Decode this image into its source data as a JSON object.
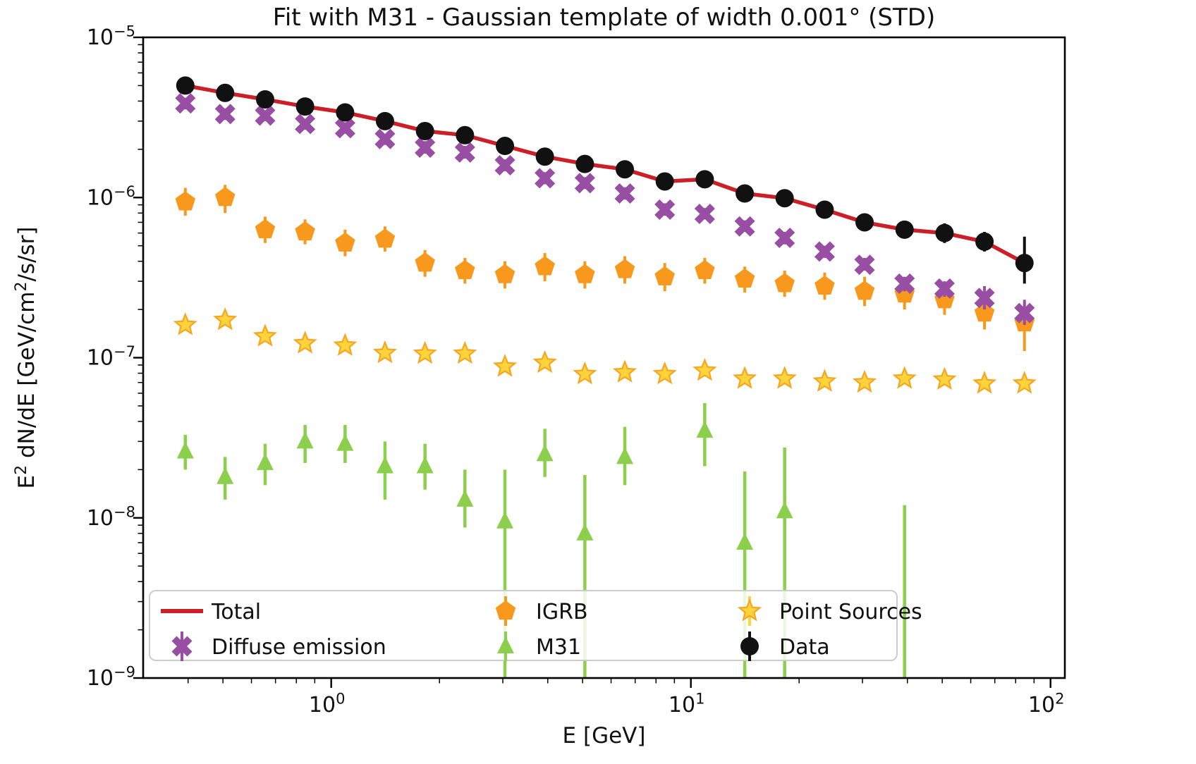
{
  "chart_data": {
    "type": "line",
    "title": "Fit with M31 - Gaussian template of width 0.001° (STD)",
    "xlabel": "E [GeV]",
    "ylabel": "E^2 dN/dE [GeV/cm^2/s/sr]",
    "xscale": "log",
    "yscale": "log",
    "xlim": [
      0.3,
      109.6
    ],
    "ylim": [
      1e-09,
      1e-05
    ],
    "grid": false,
    "frame_color": "#000000",
    "background": "#ffffff",
    "x_ticks": [
      {
        "value": 1,
        "exponent": "0",
        "label": "10^0"
      },
      {
        "value": 10,
        "exponent": "1",
        "label": "10^1"
      },
      {
        "value": 100,
        "exponent": "2",
        "label": "10^2"
      }
    ],
    "y_ticks": [
      {
        "value": 1e-05,
        "exponent": "-5",
        "label": "10^-5"
      },
      {
        "value": 1e-06,
        "exponent": "-6",
        "label": "10^-6"
      },
      {
        "value": 1e-07,
        "exponent": "-7",
        "label": "10^-7"
      },
      {
        "value": 1e-08,
        "exponent": "-8",
        "label": "10^-8"
      },
      {
        "value": 1e-09,
        "exponent": "-9",
        "label": "10^-9"
      }
    ],
    "energies_gev": [
      0.393,
      0.507,
      0.655,
      0.846,
      1.093,
      1.411,
      1.823,
      2.354,
      3.041,
      3.927,
      5.073,
      6.552,
      8.462,
      10.93,
      14.12,
      18.23,
      23.55,
      30.41,
      39.28,
      50.74,
      65.53,
      84.64
    ],
    "series": [
      {
        "name": "Total",
        "type": "line",
        "marker": null,
        "color": "#cb2027",
        "values": [
          5e-06,
          4.5e-06,
          4.1e-06,
          3.7e-06,
          3.4e-06,
          3e-06,
          2.6e-06,
          2.45e-06,
          2.1e-06,
          1.8e-06,
          1.62e-06,
          1.5e-06,
          1.26e-06,
          1.3e-06,
          1.06e-06,
          9.9e-07,
          8.4e-07,
          7e-07,
          6.3e-07,
          6e-07,
          5.3e-07,
          3.9e-07
        ]
      },
      {
        "name": "IGRB",
        "type": "errorbar",
        "marker": "pentagon",
        "color": "#f8991d",
        "values": [
          9.4e-07,
          1e-06,
          6.3e-07,
          6.1e-07,
          5.2e-07,
          5.5e-07,
          3.9e-07,
          3.5e-07,
          3.3e-07,
          3.7e-07,
          3.3e-07,
          3.55e-07,
          3.2e-07,
          3.5e-07,
          3.1e-07,
          2.9e-07,
          2.8e-07,
          2.6e-07,
          2.5e-07,
          2.3e-07,
          1.9e-07,
          1.65e-07
        ],
        "err_hi": [
          1.15e-06,
          1.2e-06,
          7.6e-07,
          7.3e-07,
          6.3e-07,
          6.6e-07,
          4.7e-07,
          4.2e-07,
          4e-07,
          4.5e-07,
          4e-07,
          4.3e-07,
          3.9e-07,
          4.2e-07,
          3.7e-07,
          3.5e-07,
          3.4e-07,
          3.2e-07,
          3e-07,
          2.9e-07,
          2.4e-07,
          2.2e-07
        ],
        "err_lo": [
          7.7e-07,
          8e-07,
          5.2e-07,
          5.1e-07,
          4.3e-07,
          4.6e-07,
          3.2e-07,
          2.9e-07,
          2.7e-07,
          3e-07,
          2.7e-07,
          2.9e-07,
          2.6e-07,
          2.9e-07,
          2.55e-07,
          2.4e-07,
          2.3e-07,
          2.1e-07,
          2e-07,
          1.85e-07,
          1.5e-07,
          1.1e-07
        ]
      },
      {
        "name": "Point Sources",
        "type": "errorbar",
        "marker": "star",
        "color": "#ffd43b",
        "edge_color": "#f5a623",
        "values": [
          1.6e-07,
          1.72e-07,
          1.36e-07,
          1.23e-07,
          1.19e-07,
          1.07e-07,
          1.06e-07,
          1.06e-07,
          8.8e-08,
          9.3e-08,
          7.9e-08,
          8.1e-08,
          7.9e-08,
          8.3e-08,
          7.4e-08,
          7.4e-08,
          7.1e-08,
          7e-08,
          7.4e-08,
          7.3e-08,
          6.9e-08,
          6.9e-08
        ],
        "err_hi": [
          1.7e-07,
          1.82e-07,
          1.44e-07,
          1.3e-07,
          1.26e-07,
          1.13e-07,
          1.12e-07,
          1.12e-07,
          9.3e-08,
          9.9e-08,
          8.4e-08,
          8.6e-08,
          8.4e-08,
          8.8e-08,
          7.8e-08,
          7.8e-08,
          7.5e-08,
          7.4e-08,
          7.8e-08,
          7.7e-08,
          7.3e-08,
          7.3e-08
        ],
        "err_lo": [
          1.51e-07,
          1.62e-07,
          1.28e-07,
          1.16e-07,
          1.12e-07,
          1.01e-07,
          1e-07,
          1e-07,
          8.3e-08,
          8.8e-08,
          7.5e-08,
          7.6e-08,
          7.5e-08,
          7.8e-08,
          7e-08,
          7e-08,
          6.7e-08,
          6.6e-08,
          7e-08,
          6.9e-08,
          6.5e-08,
          6.5e-08
        ]
      },
      {
        "name": "M31",
        "type": "errorbar",
        "marker": "triangle",
        "color": "#8bcf4c",
        "values": [
          2.6e-08,
          1.8e-08,
          2.2e-08,
          3e-08,
          2.9e-08,
          2.1e-08,
          2.1e-08,
          1.3e-08,
          9.5e-09,
          2.5e-08,
          8e-09,
          2.4e-08,
          null,
          3.5e-08,
          7e-09,
          1.1e-08,
          null,
          null,
          null,
          null,
          null,
          null
        ],
        "err_hi": [
          3.3e-08,
          2.4e-08,
          2.9e-08,
          3.8e-08,
          3.8e-08,
          3e-08,
          2.9e-08,
          2e-08,
          2e-08,
          3.6e-08,
          1.85e-08,
          3.7e-08,
          null,
          5.2e-08,
          1.95e-08,
          2.75e-08,
          null,
          null,
          1.2e-08,
          null,
          null,
          null
        ],
        "err_lo": [
          2e-08,
          1.3e-08,
          1.6e-08,
          2.2e-08,
          2.2e-08,
          1.3e-08,
          1.5e-08,
          8.7e-09,
          1e-10,
          1.8e-08,
          1e-10,
          1.6e-08,
          null,
          2.1e-08,
          1e-10,
          1e-10,
          null,
          null,
          1e-10,
          null,
          null,
          null
        ]
      },
      {
        "name": "Diffuse emission",
        "type": "errorbar",
        "marker": "x",
        "color": "#984ea3",
        "values": [
          3.87e-06,
          3.32e-06,
          3.25e-06,
          2.88e-06,
          2.71e-06,
          2.32e-06,
          2.05e-06,
          1.91e-06,
          1.59e-06,
          1.32e-06,
          1.23e-06,
          1.06e-06,
          8.4e-07,
          7.9e-07,
          6.6e-07,
          5.6e-07,
          4.6e-07,
          3.8e-07,
          2.9e-07,
          2.7e-07,
          2.36e-07,
          1.9e-07
        ],
        "err_hi": [
          4.2e-06,
          3.6e-06,
          3.5e-06,
          3.1e-06,
          2.95e-06,
          2.5e-06,
          2.25e-06,
          2.1e-06,
          1.73e-06,
          1.44e-06,
          1.34e-06,
          1.16e-06,
          9.2e-07,
          8.6e-07,
          7.2e-07,
          6.1e-07,
          5e-07,
          4.2e-07,
          3.2e-07,
          3e-07,
          2.8e-07,
          2.3e-07
        ],
        "err_lo": [
          3.55e-06,
          3.05e-06,
          3e-06,
          2.65e-06,
          2.5e-06,
          2.13e-06,
          1.88e-06,
          1.75e-06,
          1.46e-06,
          1.21e-06,
          1.13e-06,
          9.7e-07,
          7.7e-07,
          7.3e-07,
          6.1e-07,
          5.1e-07,
          4.2e-07,
          3.5e-07,
          2.6e-07,
          2.4e-07,
          2e-07,
          1.6e-07
        ]
      },
      {
        "name": "Data",
        "type": "errorbar",
        "marker": "circle",
        "color": "#111111",
        "values": [
          5e-06,
          4.5e-06,
          4.1e-06,
          3.7e-06,
          3.4e-06,
          3e-06,
          2.6e-06,
          2.45e-06,
          2.1e-06,
          1.8e-06,
          1.62e-06,
          1.5e-06,
          1.26e-06,
          1.3e-06,
          1.06e-06,
          9.9e-07,
          8.4e-07,
          7e-07,
          6.3e-07,
          6e-07,
          5.3e-07,
          3.9e-07
        ],
        "err_hi": [
          5.3e-06,
          4.8e-06,
          4.4e-06,
          3.9e-06,
          3.6e-06,
          3.2e-06,
          2.75e-06,
          2.6e-06,
          2.25e-06,
          1.95e-06,
          1.73e-06,
          1.67e-06,
          1.4e-06,
          1.44e-06,
          1.18e-06,
          1.1e-06,
          9.3e-07,
          7.9e-07,
          7.1e-07,
          6.9e-07,
          6.1e-07,
          5.7e-07
        ],
        "err_lo": [
          4.7e-06,
          4.2e-06,
          3.85e-06,
          3.45e-06,
          3.1e-06,
          2.8e-06,
          2.4e-06,
          2.3e-06,
          1.95e-06,
          1.7e-06,
          1.5e-06,
          1.35e-06,
          1.13e-06,
          1.17e-06,
          9.5e-07,
          8.9e-07,
          7.5e-07,
          6.2e-07,
          5.6e-07,
          5.2e-07,
          4.6e-07,
          2.9e-07
        ]
      }
    ],
    "legend": {
      "position": "lower left",
      "entries": [
        {
          "label": "Total",
          "series": "Total",
          "col": 0,
          "row": 0
        },
        {
          "label": "Diffuse emission",
          "series": "Diffuse emission",
          "col": 0,
          "row": 1
        },
        {
          "label": "IGRB",
          "series": "IGRB",
          "col": 1,
          "row": 0
        },
        {
          "label": "M31",
          "series": "M31",
          "col": 1,
          "row": 1
        },
        {
          "label": "Point Sources",
          "series": "Point Sources",
          "col": 2,
          "row": 0
        },
        {
          "label": "Data",
          "series": "Data",
          "col": 2,
          "row": 1
        }
      ]
    }
  }
}
